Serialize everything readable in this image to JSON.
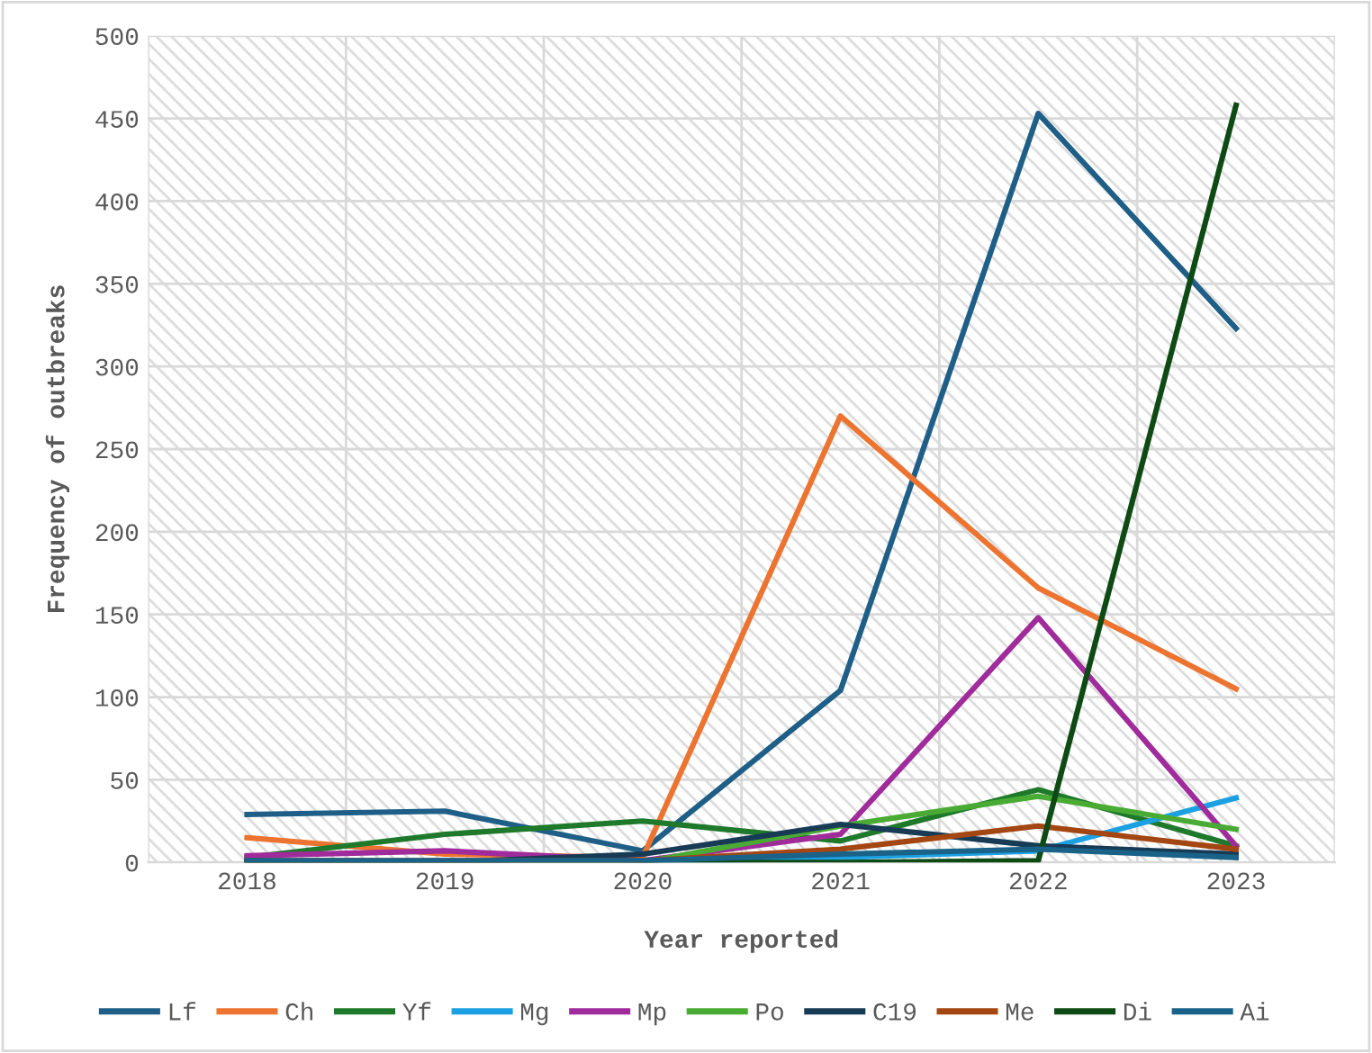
{
  "chart_data": {
    "type": "line",
    "xlabel": "Year reported",
    "ylabel": "Frequency of outbreaks",
    "categories": [
      "2018",
      "2019",
      "2020",
      "2021",
      "2022",
      "2023"
    ],
    "ylim": [
      0,
      500
    ],
    "yticks": [
      0,
      50,
      100,
      150,
      200,
      250,
      300,
      350,
      400,
      450,
      500
    ],
    "grid": true,
    "legend": "bottom",
    "marker": "none",
    "line_style": "solid",
    "series": [
      {
        "name": "Lf",
        "color": "#1f5f87",
        "values": [
          29,
          31,
          7,
          104,
          453,
          323
        ]
      },
      {
        "name": "Ch",
        "color": "#ed7430",
        "values": [
          15,
          5,
          3,
          270,
          166,
          105
        ]
      },
      {
        "name": "Yf",
        "color": "#1e7a2a",
        "values": [
          3,
          17,
          25,
          13,
          44,
          10
        ]
      },
      {
        "name": "Mg",
        "color": "#1ba1e2",
        "values": [
          null,
          null,
          0,
          3,
          7,
          39
        ]
      },
      {
        "name": "Mp",
        "color": "#a02b9b",
        "values": [
          4,
          7,
          1,
          17,
          148,
          10
        ]
      },
      {
        "name": "Po",
        "color": "#4aab34",
        "values": [
          0,
          0,
          0,
          22,
          40,
          20
        ]
      },
      {
        "name": "C19",
        "color": "#173a55",
        "values": [
          0,
          0,
          5,
          23,
          10,
          5
        ]
      },
      {
        "name": "Me",
        "color": "#a34612",
        "values": [
          1,
          1,
          1,
          8,
          22,
          8
        ]
      },
      {
        "name": "Di",
        "color": "#0e4a14",
        "values": [
          0,
          0,
          0,
          0,
          1,
          458
        ]
      },
      {
        "name": "Ai",
        "color": "#1a6288",
        "values": [
          1,
          1,
          1,
          5,
          8,
          3
        ]
      }
    ]
  }
}
